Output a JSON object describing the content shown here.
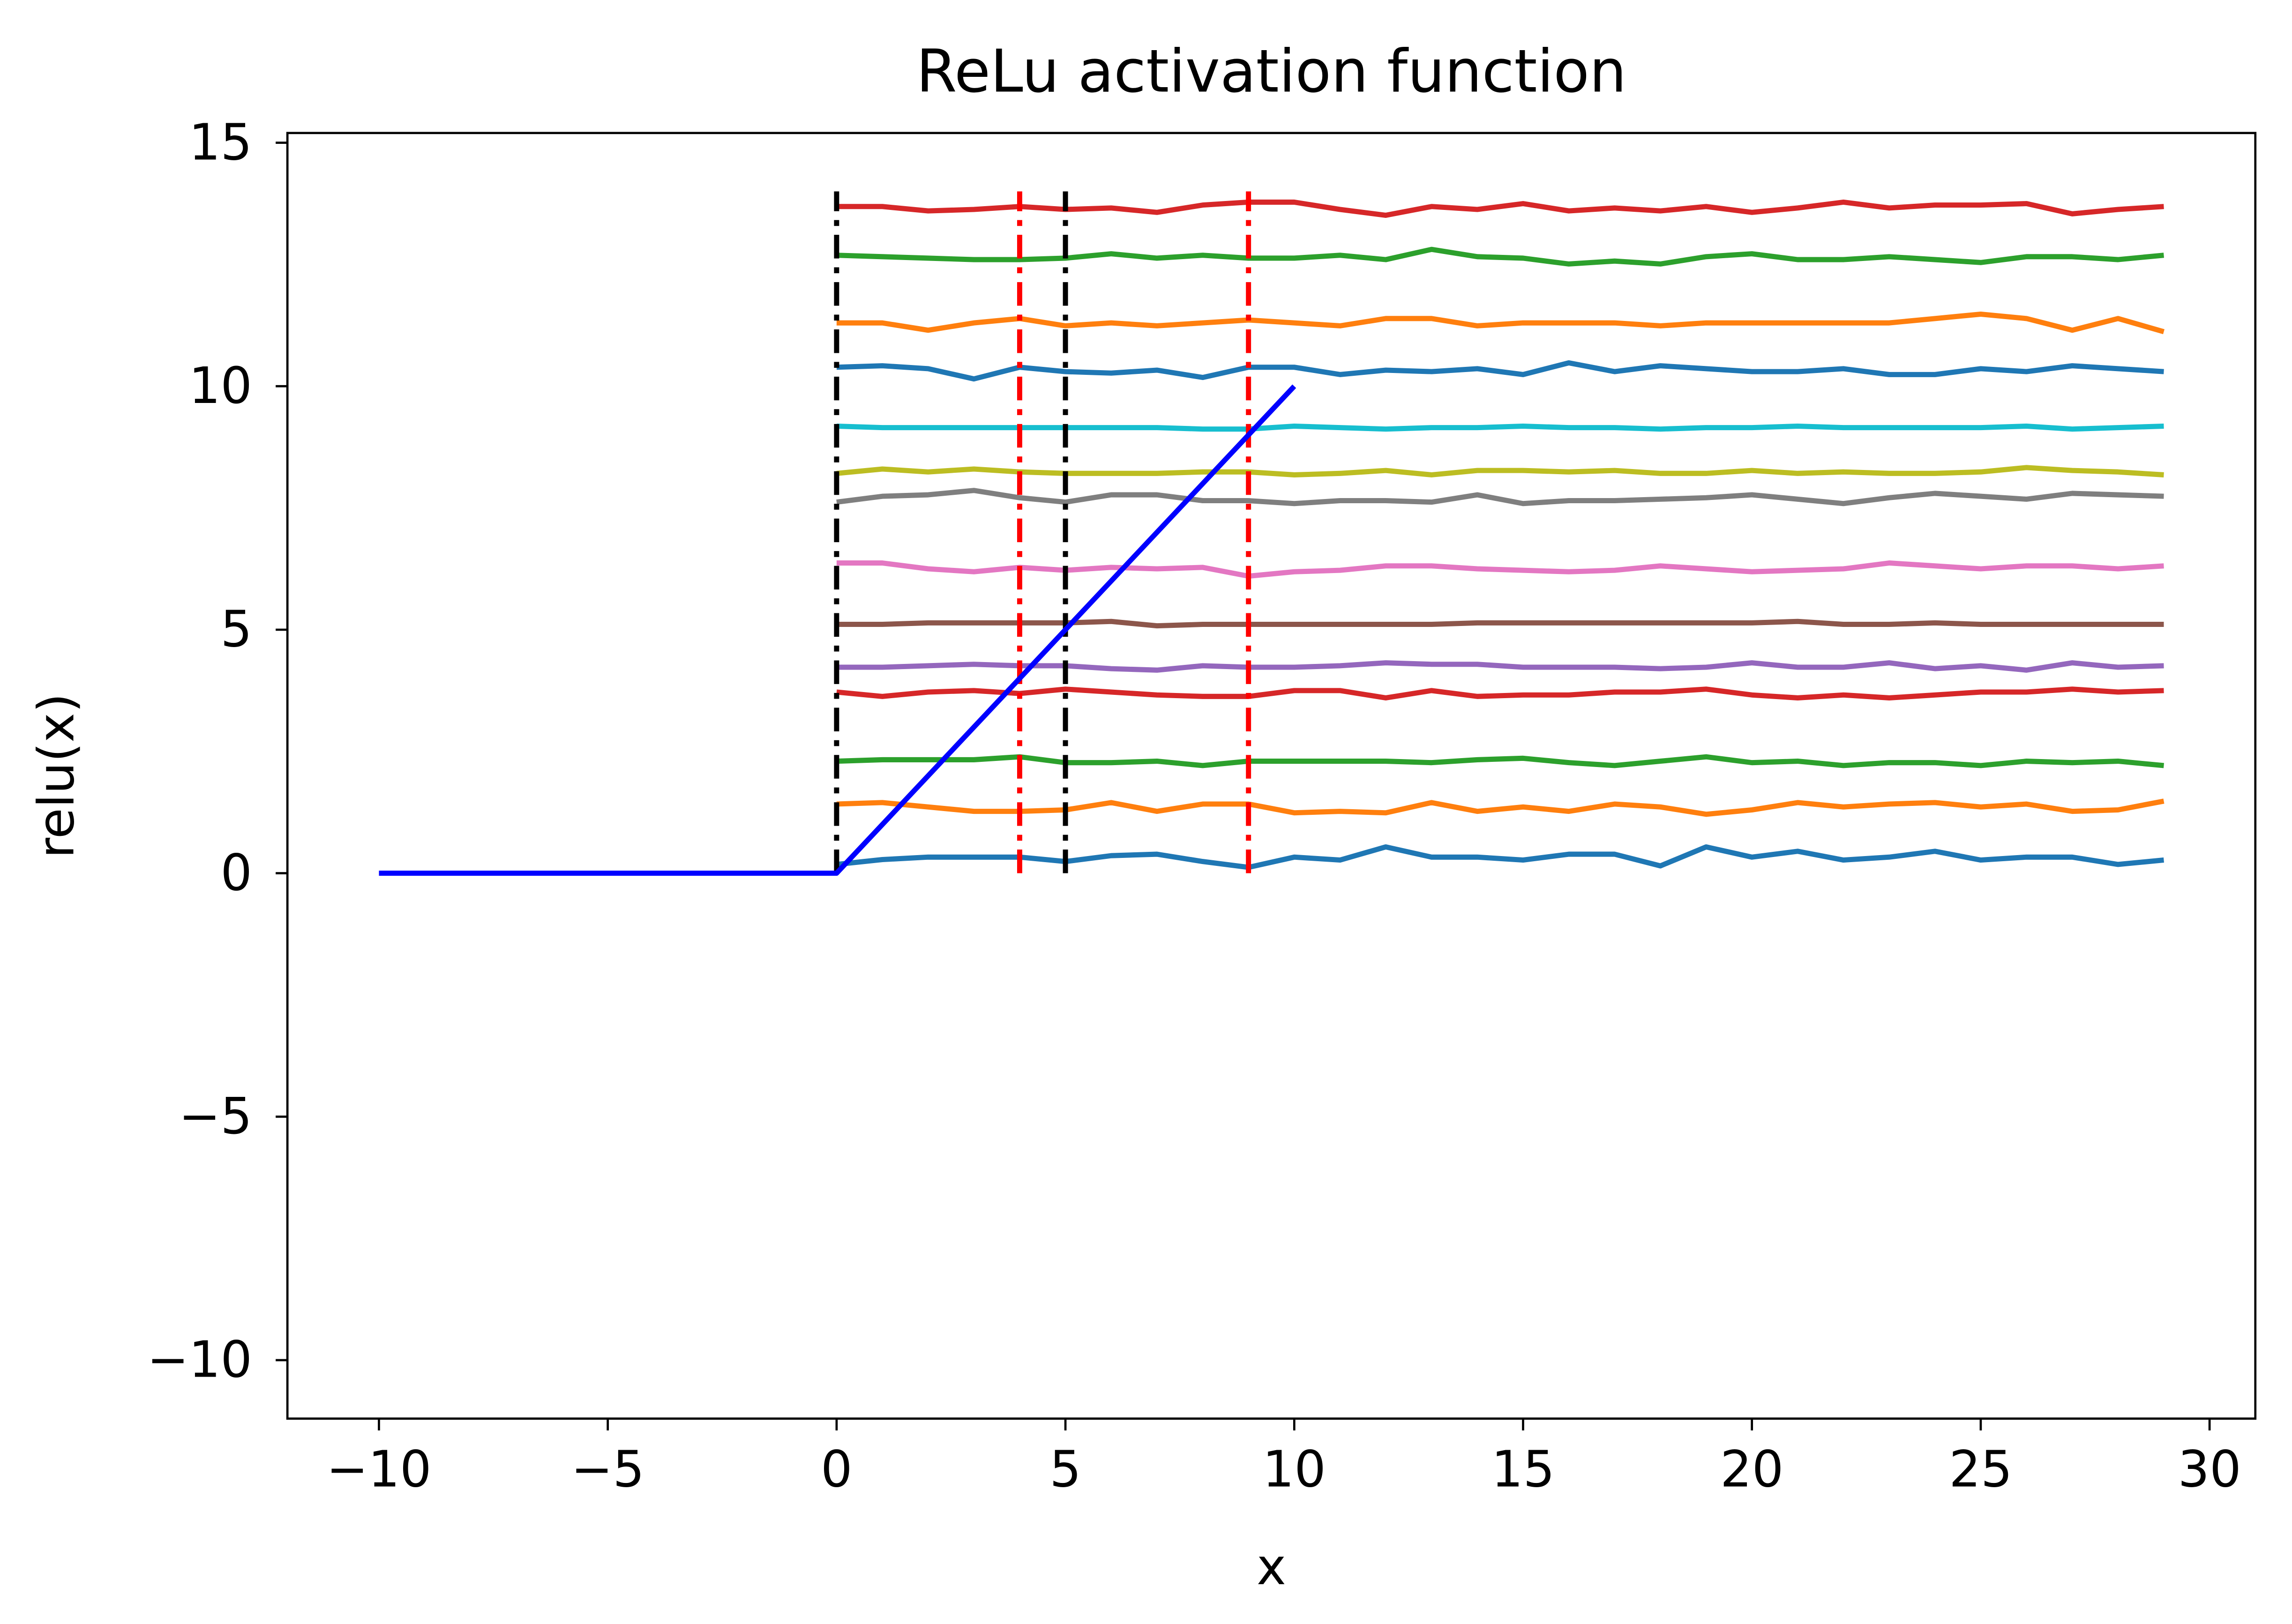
{
  "chart_data": {
    "type": "line",
    "title": "ReLu activation function",
    "xlabel": "x",
    "ylabel": "relu(x)",
    "xlim": [
      -12.0,
      31.0
    ],
    "ylim": [
      -11.2,
      15.2
    ],
    "xticks": [
      -10,
      -5,
      0,
      5,
      10,
      15,
      20,
      25,
      30
    ],
    "yticks": [
      -10,
      -5,
      0,
      5,
      10,
      15
    ],
    "xtick_labels": [
      "−10",
      "−5",
      "0",
      "5",
      "10",
      "15",
      "20",
      "25",
      "30"
    ],
    "ytick_labels": [
      "−10",
      "−5",
      "0",
      "5",
      "10",
      "15"
    ],
    "series": [
      {
        "color": "#1f77b4",
        "x": [
          0,
          1,
          2,
          3,
          4,
          5,
          6,
          7,
          8,
          9,
          10,
          11,
          12,
          13,
          14,
          15,
          16,
          17,
          18,
          19,
          20,
          21,
          22,
          23,
          24,
          25,
          26,
          27,
          28,
          29
        ],
        "y": [
          0.18,
          0.28,
          0.33,
          0.33,
          0.33,
          0.24,
          0.36,
          0.39,
          0.24,
          0.12,
          0.33,
          0.27,
          0.54,
          0.33,
          0.33,
          0.27,
          0.39,
          0.39,
          0.15,
          0.54,
          0.33,
          0.45,
          0.27,
          0.33,
          0.45,
          0.27,
          0.33,
          0.33,
          0.18,
          0.27
        ]
      },
      {
        "color": "#ff7f0e",
        "x": [
          0,
          1,
          2,
          3,
          4,
          5,
          6,
          7,
          8,
          9,
          10,
          11,
          12,
          13,
          14,
          15,
          16,
          17,
          18,
          19,
          20,
          21,
          22,
          23,
          24,
          25,
          26,
          27,
          28,
          29
        ],
        "y": [
          1.42,
          1.45,
          1.36,
          1.27,
          1.27,
          1.3,
          1.45,
          1.27,
          1.42,
          1.42,
          1.24,
          1.27,
          1.24,
          1.45,
          1.27,
          1.36,
          1.27,
          1.42,
          1.36,
          1.21,
          1.3,
          1.45,
          1.36,
          1.42,
          1.45,
          1.36,
          1.42,
          1.27,
          1.3,
          1.48
        ]
      },
      {
        "color": "#2ca02c",
        "x": [
          0,
          1,
          2,
          3,
          4,
          5,
          6,
          7,
          8,
          9,
          10,
          11,
          12,
          13,
          14,
          15,
          16,
          17,
          18,
          19,
          20,
          21,
          22,
          23,
          24,
          25,
          26,
          27,
          28,
          29
        ],
        "y": [
          2.3,
          2.33,
          2.33,
          2.33,
          2.39,
          2.27,
          2.27,
          2.3,
          2.21,
          2.3,
          2.3,
          2.3,
          2.3,
          2.27,
          2.33,
          2.36,
          2.27,
          2.21,
          2.3,
          2.39,
          2.27,
          2.3,
          2.21,
          2.27,
          2.27,
          2.21,
          2.3,
          2.27,
          2.3,
          2.21
        ]
      },
      {
        "color": "#d62728",
        "x": [
          0,
          1,
          2,
          3,
          4,
          5,
          6,
          7,
          8,
          9,
          10,
          11,
          12,
          13,
          14,
          15,
          16,
          17,
          18,
          19,
          20,
          21,
          22,
          23,
          24,
          25,
          26,
          27,
          28,
          29
        ],
        "y": [
          3.72,
          3.63,
          3.72,
          3.75,
          3.69,
          3.78,
          3.72,
          3.66,
          3.63,
          3.63,
          3.75,
          3.75,
          3.6,
          3.75,
          3.63,
          3.66,
          3.66,
          3.72,
          3.72,
          3.78,
          3.66,
          3.6,
          3.66,
          3.6,
          3.66,
          3.72,
          3.72,
          3.78,
          3.72,
          3.75
        ]
      },
      {
        "color": "#9467bd",
        "x": [
          0,
          1,
          2,
          3,
          4,
          5,
          6,
          7,
          8,
          9,
          10,
          11,
          12,
          13,
          14,
          15,
          16,
          17,
          18,
          19,
          20,
          21,
          22,
          23,
          24,
          25,
          26,
          27,
          28,
          29
        ],
        "y": [
          4.23,
          4.23,
          4.26,
          4.29,
          4.26,
          4.26,
          4.2,
          4.17,
          4.26,
          4.23,
          4.23,
          4.26,
          4.32,
          4.29,
          4.29,
          4.23,
          4.23,
          4.23,
          4.2,
          4.23,
          4.32,
          4.23,
          4.23,
          4.32,
          4.2,
          4.26,
          4.17,
          4.32,
          4.23,
          4.26
        ]
      },
      {
        "color": "#8c564b",
        "x": [
          0,
          1,
          2,
          3,
          4,
          5,
          6,
          7,
          8,
          9,
          10,
          11,
          12,
          13,
          14,
          15,
          16,
          17,
          18,
          19,
          20,
          21,
          22,
          23,
          24,
          25,
          26,
          27,
          28,
          29
        ],
        "y": [
          5.11,
          5.11,
          5.14,
          5.14,
          5.14,
          5.14,
          5.17,
          5.08,
          5.11,
          5.11,
          5.11,
          5.11,
          5.11,
          5.11,
          5.14,
          5.14,
          5.14,
          5.14,
          5.14,
          5.14,
          5.14,
          5.17,
          5.11,
          5.11,
          5.14,
          5.11,
          5.11,
          5.11,
          5.11,
          5.11
        ]
      },
      {
        "color": "#e377c2",
        "x": [
          0,
          1,
          2,
          3,
          4,
          5,
          6,
          7,
          8,
          9,
          10,
          11,
          12,
          13,
          14,
          15,
          16,
          17,
          18,
          19,
          20,
          21,
          22,
          23,
          24,
          25,
          26,
          27,
          28,
          29
        ],
        "y": [
          6.37,
          6.37,
          6.25,
          6.19,
          6.28,
          6.22,
          6.28,
          6.25,
          6.28,
          6.1,
          6.19,
          6.22,
          6.31,
          6.31,
          6.25,
          6.22,
          6.19,
          6.22,
          6.31,
          6.25,
          6.19,
          6.22,
          6.25,
          6.37,
          6.31,
          6.25,
          6.31,
          6.31,
          6.25,
          6.31
        ]
      },
      {
        "color": "#7f7f7f",
        "x": [
          0,
          1,
          2,
          3,
          4,
          5,
          6,
          7,
          8,
          9,
          10,
          11,
          12,
          13,
          14,
          15,
          16,
          17,
          18,
          19,
          20,
          21,
          22,
          23,
          24,
          25,
          26,
          27,
          28,
          29
        ],
        "y": [
          7.62,
          7.74,
          7.77,
          7.86,
          7.71,
          7.62,
          7.77,
          7.77,
          7.65,
          7.65,
          7.59,
          7.65,
          7.65,
          7.62,
          7.77,
          7.59,
          7.65,
          7.65,
          7.68,
          7.71,
          7.77,
          7.68,
          7.59,
          7.71,
          7.8,
          7.74,
          7.68,
          7.8,
          7.77,
          7.74
        ]
      },
      {
        "color": "#bcbd22",
        "x": [
          0,
          1,
          2,
          3,
          4,
          5,
          6,
          7,
          8,
          9,
          10,
          11,
          12,
          13,
          14,
          15,
          16,
          17,
          18,
          19,
          20,
          21,
          22,
          23,
          24,
          25,
          26,
          27,
          28,
          29
        ],
        "y": [
          8.21,
          8.3,
          8.24,
          8.3,
          8.24,
          8.21,
          8.21,
          8.21,
          8.24,
          8.24,
          8.18,
          8.21,
          8.27,
          8.18,
          8.27,
          8.27,
          8.24,
          8.27,
          8.21,
          8.21,
          8.27,
          8.21,
          8.24,
          8.21,
          8.21,
          8.24,
          8.33,
          8.27,
          8.24,
          8.18
        ]
      },
      {
        "color": "#17becf",
        "x": [
          0,
          1,
          2,
          3,
          4,
          5,
          6,
          7,
          8,
          9,
          10,
          11,
          12,
          13,
          14,
          15,
          16,
          17,
          18,
          19,
          20,
          21,
          22,
          23,
          24,
          25,
          26,
          27,
          28,
          29
        ],
        "y": [
          9.18,
          9.15,
          9.15,
          9.15,
          9.15,
          9.15,
          9.15,
          9.15,
          9.12,
          9.12,
          9.18,
          9.15,
          9.12,
          9.15,
          9.15,
          9.18,
          9.15,
          9.15,
          9.12,
          9.15,
          9.15,
          9.18,
          9.15,
          9.15,
          9.15,
          9.15,
          9.18,
          9.12,
          9.15,
          9.18
        ]
      },
      {
        "color": "#1f77b4",
        "x": [
          0,
          1,
          2,
          3,
          4,
          5,
          6,
          7,
          8,
          9,
          10,
          11,
          12,
          13,
          14,
          15,
          16,
          17,
          18,
          19,
          20,
          21,
          22,
          23,
          24,
          25,
          26,
          27,
          28,
          29
        ],
        "y": [
          10.39,
          10.42,
          10.36,
          10.15,
          10.39,
          10.3,
          10.27,
          10.33,
          10.18,
          10.39,
          10.39,
          10.24,
          10.33,
          10.3,
          10.36,
          10.24,
          10.48,
          10.3,
          10.42,
          10.36,
          10.3,
          10.3,
          10.36,
          10.24,
          10.24,
          10.36,
          10.3,
          10.42,
          10.36,
          10.3
        ]
      },
      {
        "color": "#ff7f0e",
        "x": [
          0,
          1,
          2,
          3,
          4,
          5,
          6,
          7,
          8,
          9,
          10,
          11,
          12,
          13,
          14,
          15,
          16,
          17,
          18,
          19,
          20,
          21,
          22,
          23,
          24,
          25,
          26,
          27,
          28,
          29
        ],
        "y": [
          11.3,
          11.3,
          11.15,
          11.3,
          11.39,
          11.24,
          11.3,
          11.24,
          11.3,
          11.36,
          11.3,
          11.24,
          11.39,
          11.39,
          11.24,
          11.3,
          11.3,
          11.3,
          11.24,
          11.3,
          11.3,
          11.3,
          11.3,
          11.3,
          11.39,
          11.48,
          11.39,
          11.15,
          11.39,
          11.12
        ]
      },
      {
        "color": "#2ca02c",
        "x": [
          0,
          1,
          2,
          3,
          4,
          5,
          6,
          7,
          8,
          9,
          10,
          11,
          12,
          13,
          14,
          15,
          16,
          17,
          18,
          19,
          20,
          21,
          22,
          23,
          24,
          25,
          26,
          27,
          28,
          29
        ],
        "y": [
          12.69,
          12.66,
          12.63,
          12.6,
          12.6,
          12.63,
          12.72,
          12.63,
          12.69,
          12.63,
          12.63,
          12.69,
          12.6,
          12.81,
          12.66,
          12.63,
          12.51,
          12.57,
          12.51,
          12.66,
          12.72,
          12.6,
          12.6,
          12.66,
          12.6,
          12.54,
          12.66,
          12.66,
          12.6,
          12.69
        ]
      },
      {
        "color": "#d62728",
        "x": [
          0,
          1,
          2,
          3,
          4,
          5,
          6,
          7,
          8,
          9,
          10,
          11,
          12,
          13,
          14,
          15,
          16,
          17,
          18,
          19,
          20,
          21,
          22,
          23,
          24,
          25,
          26,
          27,
          28,
          29
        ],
        "y": [
          13.69,
          13.69,
          13.6,
          13.63,
          13.69,
          13.63,
          13.66,
          13.57,
          13.72,
          13.78,
          13.78,
          13.63,
          13.51,
          13.69,
          13.63,
          13.75,
          13.6,
          13.66,
          13.6,
          13.69,
          13.57,
          13.66,
          13.78,
          13.66,
          13.72,
          13.72,
          13.75,
          13.54,
          13.63,
          13.69
        ]
      }
    ],
    "relu_line": {
      "color": "#0000ff",
      "x": [
        -10,
        0,
        10
      ],
      "y": [
        0,
        0,
        10
      ]
    },
    "vlines": [
      {
        "x": 0,
        "color": "#000000",
        "y_max": 14
      },
      {
        "x": 4,
        "color": "#ff0000",
        "y_max": 14
      },
      {
        "x": 5,
        "color": "#000000",
        "y_max": 14
      },
      {
        "x": 9,
        "color": "#ff0000",
        "y_max": 14
      }
    ]
  }
}
